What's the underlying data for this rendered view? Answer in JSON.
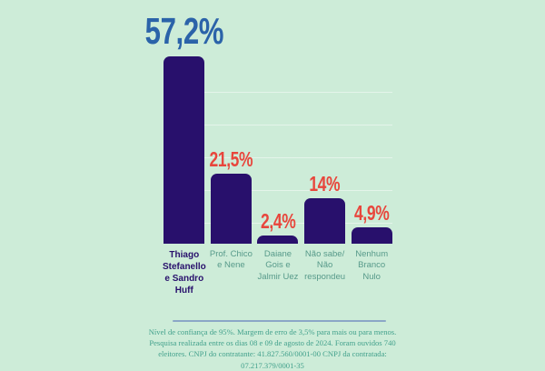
{
  "page": {
    "background_color": "#cdecd8"
  },
  "chart_data": {
    "type": "bar",
    "title": "",
    "xlabel": "",
    "ylabel": "",
    "categories": [
      "Thiago Stefanello e Sandro Huff",
      "Prof. Chico e Nene",
      "Daiane Gois e Jalmir Uez",
      "Não sabe/ Não respondeu",
      "Nenhum Branco Nulo"
    ],
    "values": [
      57.2,
      21.5,
      2.4,
      14,
      4.9
    ],
    "value_labels": [
      "57,2%",
      "21,5%",
      "2,4%",
      "14%",
      "4,9%"
    ],
    "ylim": [
      0,
      60
    ],
    "grid": "faint horizontal lines, no axes shown",
    "legend": "none",
    "bar_color": "#28106c",
    "leader_value_label_color": "#2b63a9",
    "value_label_color": "#e8463c",
    "leader_category_label_color": "#28106c",
    "category_label_color": "#579a8a"
  },
  "footer": {
    "separator_color": "#8ba7c7",
    "disclaimer": "Nível de confiança de 95%. Margem de erro de 3,5% para mais ou para menos. Pesquisa realizada entre os dias 08 e 09 de agosto de 2024. Foram ouvidos 740 eleitores. CNPJ do contratante: 41.827.560/0001-00 CNPJ da contratada: 07.217.379/0001-35"
  }
}
